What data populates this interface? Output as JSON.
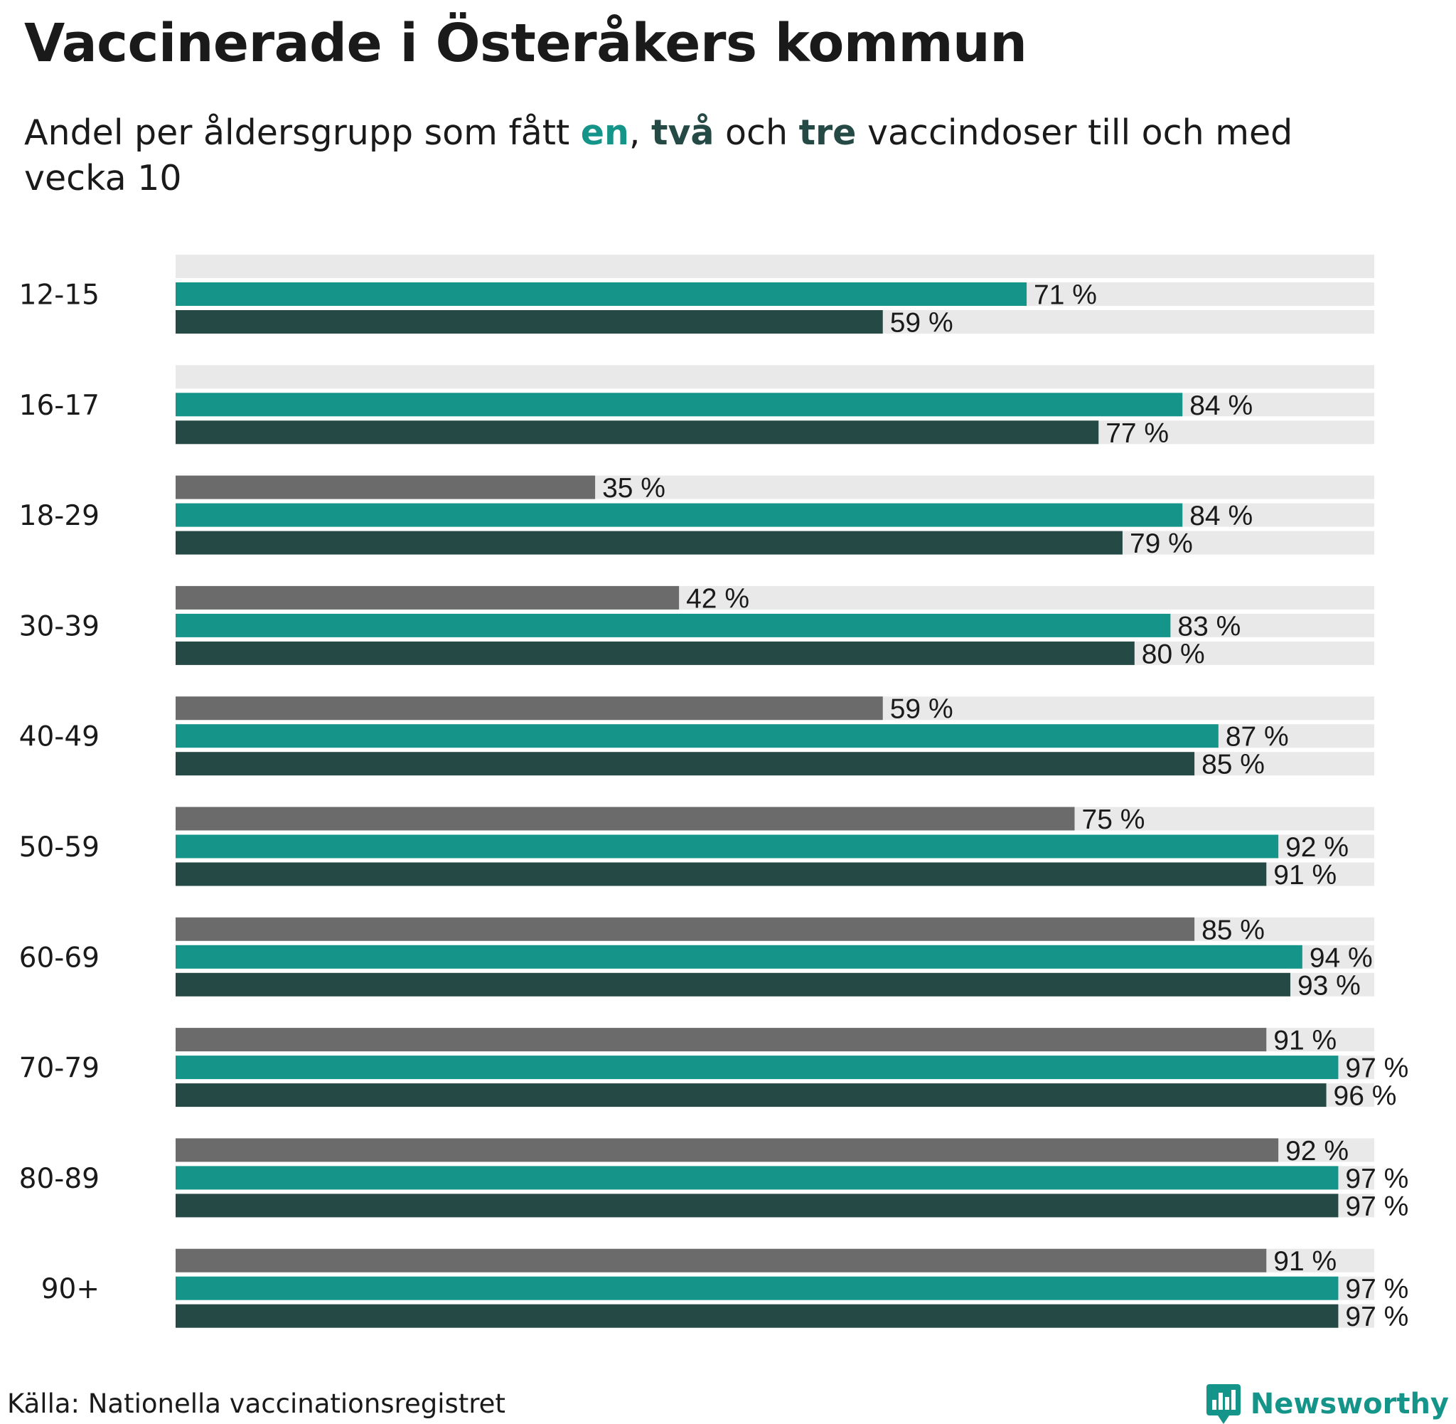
{
  "title": "Vaccinerade i Österåkers kommun",
  "subtitle": {
    "before": "Andel per åldersgrupp som fått ",
    "one": "en",
    "sep1": ", ",
    "two": "två",
    "sep2": " och ",
    "three": "tre",
    "after": " vaccindoser till och med vecka 10"
  },
  "source": "Källa: Nationella vaccinationsregistret",
  "logo_text": "Newsworthy",
  "colors": {
    "three_doses": "#6b6b6b",
    "one_dose": "#15958a",
    "two_doses": "#254a46",
    "track": "#e9e9e9",
    "brand": "#15958a"
  },
  "chart_data": {
    "type": "bar",
    "orientation": "horizontal",
    "xlim": [
      0,
      100
    ],
    "value_suffix": " %",
    "categories": [
      "12-15",
      "16-17",
      "18-29",
      "30-39",
      "40-49",
      "50-59",
      "60-69",
      "70-79",
      "80-89",
      "90+"
    ],
    "series": [
      {
        "name": "tre",
        "color": "#6b6b6b",
        "values": [
          null,
          null,
          35,
          42,
          59,
          75,
          85,
          91,
          92,
          91
        ]
      },
      {
        "name": "en",
        "color": "#15958a",
        "values": [
          71,
          84,
          84,
          83,
          87,
          92,
          94,
          97,
          97,
          97
        ]
      },
      {
        "name": "två",
        "color": "#254a46",
        "values": [
          59,
          77,
          79,
          80,
          85,
          91,
          93,
          96,
          97,
          97
        ]
      }
    ]
  }
}
